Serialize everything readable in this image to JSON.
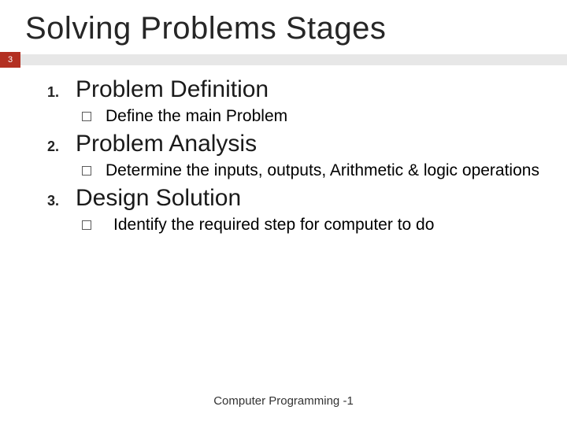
{
  "slide": {
    "title": "Solving Problems Stages",
    "page_number": "3",
    "footer": "Computer Programming -1"
  },
  "accent": {
    "bar_color": "#e7e7e7",
    "badge_color": "#b33022",
    "badge_text_color": "#ffffff"
  },
  "stages": [
    {
      "num": "1.",
      "title": "Problem Definition",
      "sub": "Define the main Problem"
    },
    {
      "num": "2.",
      "title": "Problem Analysis",
      "sub": "Determine the inputs, outputs, Arithmetic & logic operations"
    },
    {
      "num": "3.",
      "title": "Design Solution",
      "sub": "Identify the required step  for computer to do"
    }
  ],
  "typography": {
    "title_fontsize": 40,
    "stage_title_fontsize": 30,
    "sub_fontsize": 21,
    "num_fontsize": 18,
    "footer_fontsize": 15
  }
}
